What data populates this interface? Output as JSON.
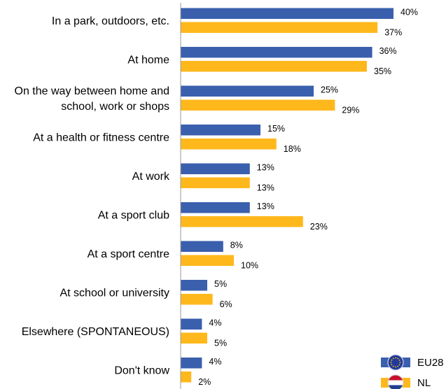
{
  "chart_data": {
    "type": "bar",
    "orientation": "horizontal",
    "categories": [
      [
        "In a park, outdoors, etc."
      ],
      [
        "At home"
      ],
      [
        "On the way between home and",
        "school, work or shops"
      ],
      [
        "At a health or fitness centre"
      ],
      [
        "At work"
      ],
      [
        "At a sport club"
      ],
      [
        "At a sport centre"
      ],
      [
        "At school or university"
      ],
      [
        "Elsewhere (SPONTANEOUS)"
      ],
      [
        "Don't know"
      ]
    ],
    "series": [
      {
        "name": "EU28",
        "color": "#3a5fad",
        "icon": "eu-flag-icon",
        "values": [
          40,
          36,
          25,
          15,
          13,
          13,
          8,
          5,
          4,
          4
        ]
      },
      {
        "name": "NL",
        "color": "#ffb81c",
        "icon": "netherlands-flag-icon",
        "values": [
          37,
          35,
          29,
          18,
          13,
          23,
          10,
          6,
          5,
          2
        ]
      }
    ],
    "value_suffix": "%",
    "xlim": [
      0,
      40
    ],
    "grid": false,
    "legend_position": "bottom-right"
  }
}
